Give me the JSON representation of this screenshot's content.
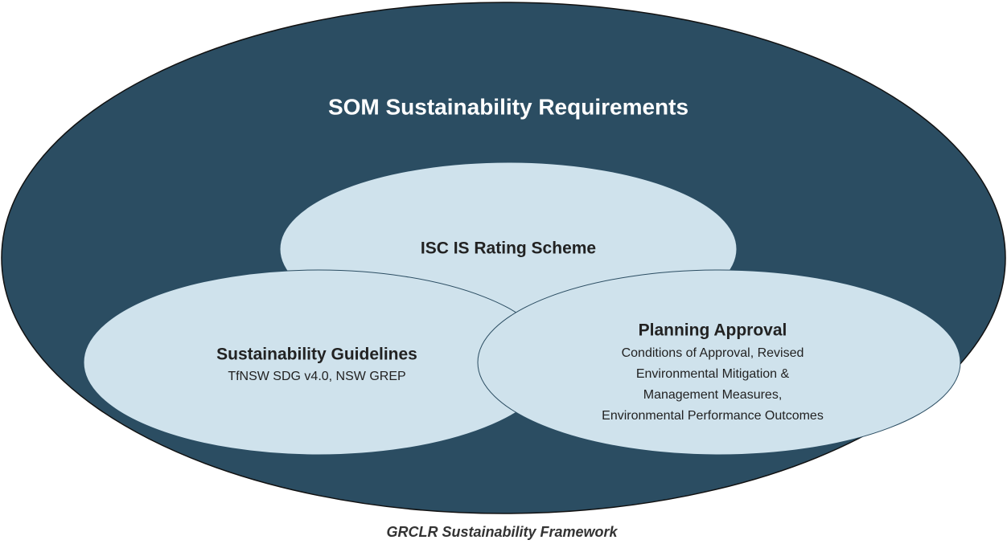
{
  "outer": {
    "label": "SOM Sustainability Requirements"
  },
  "nodes": [
    {
      "label": "ISC IS Rating Scheme"
    },
    {
      "label": "Sustainability Guidelines",
      "lines": [
        "TfNSW SDG v4.0, NSW GREP"
      ]
    },
    {
      "label": "Planning Approval",
      "lines": [
        "Conditions of Approval, Revised",
        "Environmental Mitigation &",
        "Management Measures,",
        "Environmental Performance Outcomes"
      ]
    }
  ],
  "caption": "GRCLR Sustainability Framework"
}
